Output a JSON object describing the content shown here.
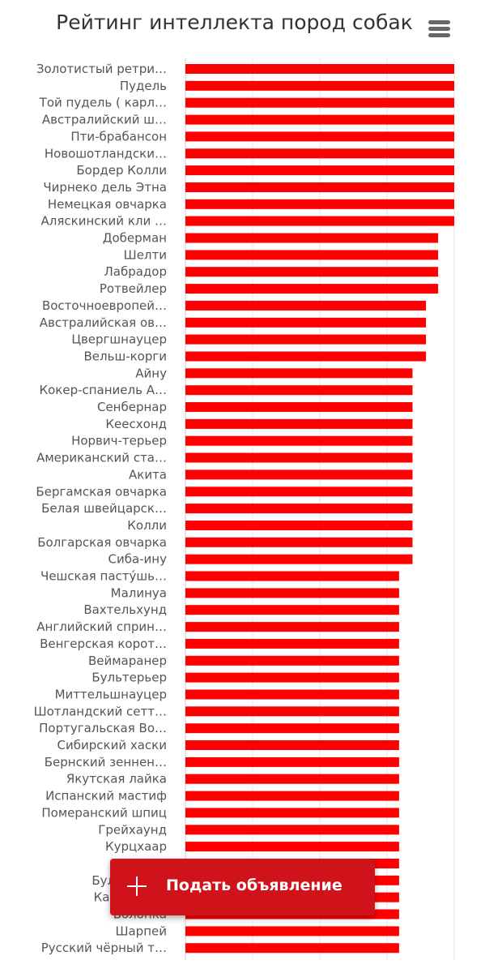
{
  "chart_data": {
    "type": "bar",
    "orientation": "horizontal",
    "title": "Рейтинг интеллекта пород собак",
    "bar_color": "#ff0000",
    "grid": true,
    "categories": [
      "Золотистый ретри…",
      "Пудель",
      "Той пудель ( карл…",
      "Австралийский ш…",
      "Пти-брабансон",
      "Новошотландски…",
      "Бордер Колли",
      "Чирнеко дель Этна",
      "Немецкая овчарка",
      "Аляскинский кли …",
      "Доберман",
      "Шелти",
      "Лабрадор",
      "Ротвейлер",
      "Восточноевропей…",
      "Австралийская ов…",
      "Цвергшнауцер",
      "Вельш-корги",
      "Айну",
      "Кокер-спаниель А…",
      "Сенбернар",
      "Кеесхонд",
      "Норвич-терьер",
      "Американский ста…",
      "Акита",
      "Бергамская овчарка",
      "Белая швейцарск…",
      "Колли",
      "Болгарская овчарка",
      "Сиба-ину",
      "Чешская пасту́шь…",
      "Малинуа",
      "Вахтельхунд",
      "Английский сприн…",
      "Венгерская корот…",
      "Веймаранер",
      "Бультерьер",
      "Миттельшнауцер",
      "Шотландский сетт…",
      "Португальская Во…",
      "Сибирский хаски",
      "Бернский зеннен…",
      "Якутская лайка",
      "Испанский мастиф",
      "Померанский шпиц",
      "Грейхаунд",
      "Курцхаар",
      "",
      "Бультерьер",
      "Кавказская",
      "Болонка",
      "Шарпей",
      "Русский чёрный т…"
    ],
    "values": [
      100,
      100,
      100,
      100,
      100,
      100,
      100,
      100,
      100,
      100,
      94,
      94,
      94,
      94,
      89.5,
      89.5,
      89.5,
      89.5,
      84.5,
      84.5,
      84.5,
      84.5,
      84.5,
      84.5,
      84.5,
      84.5,
      84.5,
      84.5,
      84.5,
      84.5,
      79.5,
      79.5,
      79.5,
      79.5,
      79.5,
      79.5,
      79.5,
      79.5,
      79.5,
      79.5,
      79.5,
      79.5,
      79.5,
      79.5,
      79.5,
      79.5,
      79.5,
      79.5,
      79.5,
      79.5,
      79.5,
      79.5,
      79.5
    ],
    "xlim": [
      0,
      100
    ]
  },
  "menu": {
    "icon": "hamburger-menu-icon"
  },
  "cta": {
    "label": "Подать объявление",
    "icon": "plus-icon",
    "color": "#d0121b"
  }
}
